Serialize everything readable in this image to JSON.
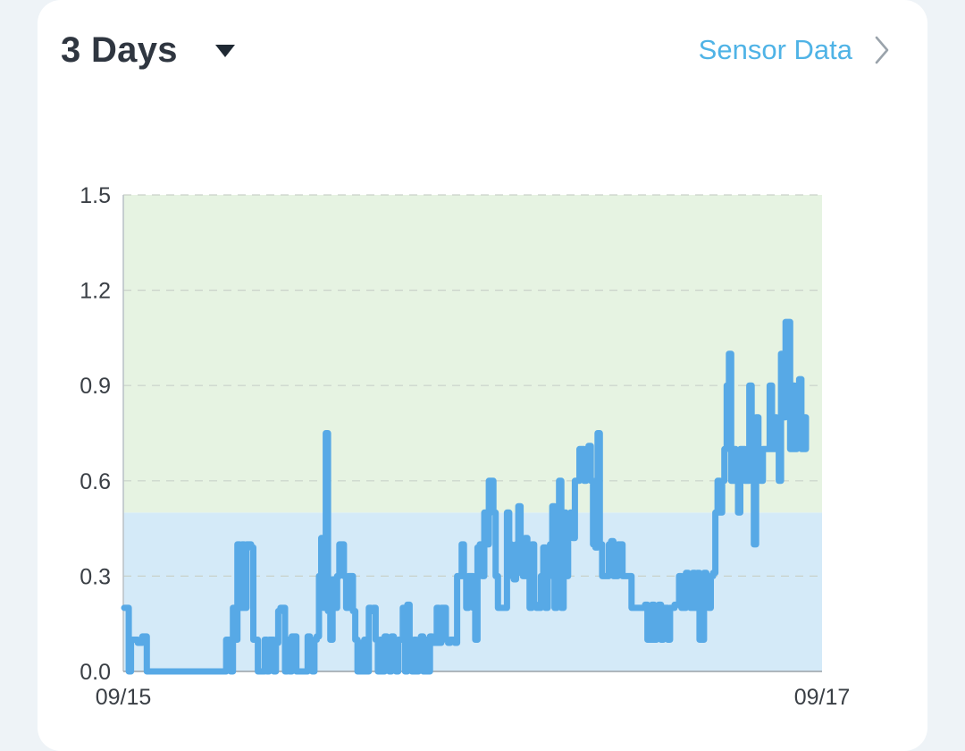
{
  "header": {
    "range_label": "3 Days",
    "sensor_link_label": "Sensor Data"
  },
  "icons": {
    "dropdown": "caret-down-icon",
    "link": "chevron-right-icon"
  },
  "colors": {
    "line": "#57a9e6",
    "upper_band": "#e6f3e2",
    "lower_band": "#d4eaf8",
    "grid": "#c9d2c9",
    "accent": "#4fb3e6"
  },
  "chart_data": {
    "type": "line",
    "x_tick_labels": [
      "09/15",
      "09/17"
    ],
    "y_tick_labels": [
      "0.0",
      "0.3",
      "0.6",
      "0.9",
      "1.2",
      "1.5"
    ],
    "ylim": [
      0,
      1.5
    ],
    "grid": "horizontal dashed",
    "bands": [
      {
        "from": 0,
        "to": 0.5,
        "color": "#d4eaf8"
      },
      {
        "from": 0.5,
        "to": 1.5,
        "color": "#e6f3e2"
      }
    ],
    "series": [
      {
        "values": [
          0.2,
          0.2,
          0,
          0.1,
          0.1,
          0.1,
          0.09,
          0.09,
          0.11,
          0.11,
          0,
          0,
          0,
          0,
          0,
          0,
          0,
          0,
          0,
          0,
          0,
          0,
          0,
          0,
          0,
          0,
          0,
          0,
          0,
          0,
          0,
          0,
          0,
          0,
          0,
          0,
          0,
          0,
          0,
          0,
          0,
          0,
          0,
          0,
          0,
          0.1,
          0.1,
          0,
          0.2,
          0.1,
          0.4,
          0.2,
          0.4,
          0.2,
          0.4,
          0.4,
          0.39,
          0.1,
          0.1,
          0,
          0,
          0,
          0.1,
          0,
          0.1,
          0.1,
          0,
          0.09,
          0.19,
          0.2,
          0.2,
          0,
          0.1,
          0,
          0.11,
          0.11,
          0,
          0,
          0,
          0,
          0,
          0.11,
          0.09,
          0,
          0.1,
          0.11,
          0.3,
          0.42,
          0.2,
          0.75,
          0.19,
          0.1,
          0.29,
          0.2,
          0.3,
          0.4,
          0.4,
          0.3,
          0.2,
          0.3,
          0.3,
          0.19,
          0.1,
          0,
          0.09,
          0,
          0.1,
          0,
          0.2,
          0.19,
          0.2,
          0.1,
          0,
          0.1,
          0,
          0.11,
          0.1,
          0,
          0.11,
          0.09,
          0,
          0.1,
          0.1,
          0.2,
          0,
          0.21,
          0.1,
          0,
          0.1,
          0,
          0.1,
          0.11,
          0,
          0.1,
          0,
          0.11,
          0.09,
          0.09,
          0.2,
          0.09,
          0.2,
          0.2,
          0.1,
          0.09,
          0.1,
          0.1,
          0.09,
          0.3,
          0.3,
          0.4,
          0.3,
          0.2,
          0.3,
          0.3,
          0.2,
          0.1,
          0.39,
          0.4,
          0.3,
          0.5,
          0.4,
          0.6,
          0.6,
          0.5,
          0.3,
          0.2,
          0.2,
          0.2,
          0.2,
          0.5,
          0.4,
          0.3,
          0.29,
          0.4,
          0.52,
          0.31,
          0.3,
          0.42,
          0.3,
          0.2,
          0.4,
          0.21,
          0.2,
          0.2,
          0.3,
          0.39,
          0.2,
          0.3,
          0.4,
          0.52,
          0.2,
          0.29,
          0.6,
          0.2,
          0.5,
          0.3,
          0.49,
          0.5,
          0.42,
          0.6,
          0.6,
          0.7,
          0.7,
          0.6,
          0.7,
          0.71,
          0.6,
          0.4,
          0.39,
          0.75,
          0.4,
          0.3,
          0.3,
          0.3,
          0.4,
          0.41,
          0.3,
          0.3,
          0.4,
          0.4,
          0.3,
          0.3,
          0.3,
          0.3,
          0.2,
          0.2,
          0.2,
          0.2,
          0.2,
          0.2,
          0.21,
          0.1,
          0.1,
          0.21,
          0.1,
          0.2,
          0.21,
          0.1,
          0.2,
          0.2,
          0.1,
          0.2,
          0.2,
          0.21,
          0.21,
          0.3,
          0.2,
          0.2,
          0.31,
          0.3,
          0.2,
          0.31,
          0.2,
          0.31,
          0.1,
          0.1,
          0.31,
          0.3,
          0.2,
          0.3,
          0.31,
          0.5,
          0.6,
          0.5,
          0.6,
          0.7,
          0.9,
          1,
          0.6,
          0.7,
          0.6,
          0.5,
          0.7,
          0.7,
          0.6,
          0.6,
          0.9,
          0.8,
          0.4,
          0.8,
          0.7,
          0.6,
          0.7,
          0.7,
          0.7,
          0.9,
          0.7,
          0.8,
          0.7,
          0.6,
          1,
          0.8,
          1.1,
          1.1,
          0.7,
          0.9,
          0.7,
          0.9,
          0.92,
          0.7,
          0.8,
          0.7
        ]
      }
    ]
  }
}
